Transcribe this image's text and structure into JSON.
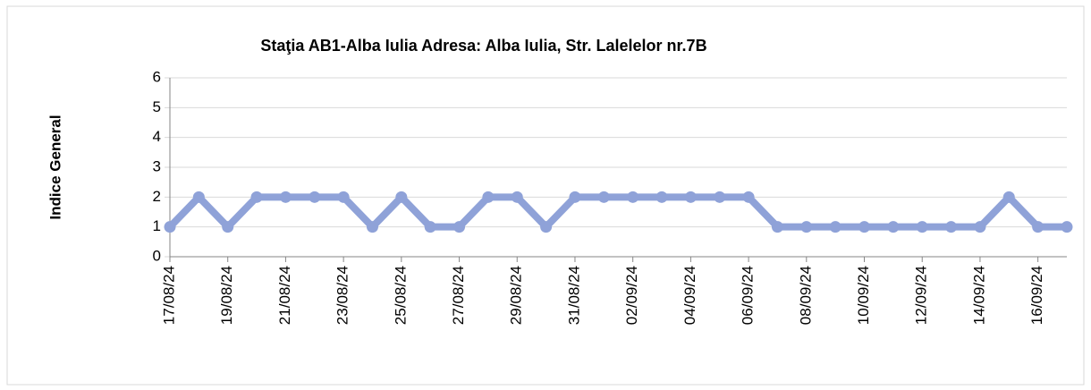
{
  "chart_data": {
    "type": "line",
    "title": "Staţia AB1-Alba Iulia  Adresa: Alba Iulia, Str. Lalelelor nr.7B",
    "y_label": "Indice General",
    "categories": [
      "17/08/24",
      null,
      "19/08/24",
      null,
      "21/08/24",
      null,
      "23/08/24",
      null,
      "25/08/24",
      null,
      "27/08/24",
      null,
      "29/08/24",
      null,
      "31/08/24",
      null,
      "02/09/24",
      null,
      "04/09/24",
      null,
      "06/09/24",
      null,
      "08/09/24",
      null,
      "10/09/24",
      null,
      "12/09/24",
      null,
      "14/09/24",
      null,
      "16/09/24",
      null
    ],
    "series": [
      {
        "name": "Indice General",
        "color": "#8fa2d8",
        "values": [
          1,
          2,
          1,
          2,
          2,
          2,
          2,
          1,
          2,
          1,
          1,
          2,
          2,
          1,
          2,
          2,
          2,
          2,
          2,
          2,
          2,
          1,
          1,
          1,
          1,
          1,
          1,
          1,
          1,
          2,
          1,
          1
        ]
      }
    ],
    "ylim": [
      0,
      6
    ],
    "yticks": [
      0,
      1,
      2,
      3,
      4,
      5,
      6
    ],
    "grid": true
  }
}
